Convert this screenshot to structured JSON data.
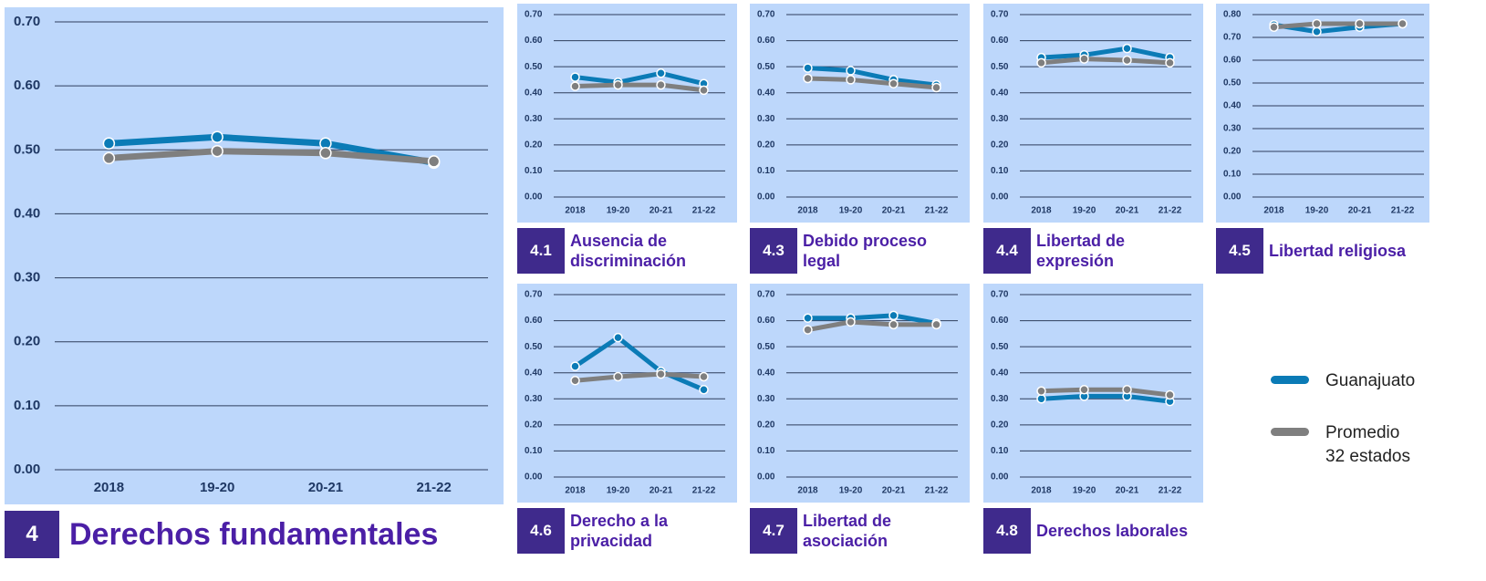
{
  "chart_data": [
    {
      "type": "line",
      "number": "4",
      "title": "Derechos fundamentales",
      "categories": [
        "2018",
        "19-20",
        "20-21",
        "21-22"
      ],
      "series": [
        {
          "name": "Guanajuato",
          "color": "#0b7bb6",
          "values": [
            0.51,
            0.52,
            0.51,
            0.48
          ]
        },
        {
          "name": "Promedio 32 estados",
          "color": "#7f7f7f",
          "values": [
            0.487,
            0.498,
            0.495,
            0.482
          ]
        }
      ],
      "ylim": [
        0,
        0.7
      ],
      "yticks": [
        {
          "value": 0,
          "label": "0.00"
        },
        {
          "value": 0.1,
          "label": "0.10"
        },
        {
          "value": 0.2,
          "label": "0.20"
        },
        {
          "value": 0.3,
          "label": "0.30"
        },
        {
          "value": 0.4,
          "label": "0.40"
        },
        {
          "value": 0.5,
          "label": "0.50"
        },
        {
          "value": 0.6,
          "label": "0.60"
        },
        {
          "value": 0.7,
          "label": "0.70"
        }
      ],
      "grid": true
    },
    {
      "type": "line",
      "number": "4.1",
      "title": "Ausencia de discriminación",
      "categories": [
        "2018",
        "19-20",
        "20-21",
        "21-22"
      ],
      "series": [
        {
          "name": "Guanajuato",
          "color": "#0b7bb6",
          "values": [
            0.46,
            0.44,
            0.475,
            0.435
          ]
        },
        {
          "name": "Promedio 32 estados",
          "color": "#7f7f7f",
          "values": [
            0.425,
            0.43,
            0.43,
            0.41
          ]
        }
      ],
      "ylim": [
        0,
        0.7
      ],
      "yticks": [
        {
          "value": 0,
          "label": "0.00"
        },
        {
          "value": 0.1,
          "label": "0.10"
        },
        {
          "value": 0.2,
          "label": "0.20"
        },
        {
          "value": 0.3,
          "label": "0.30"
        },
        {
          "value": 0.4,
          "label": "0.40"
        },
        {
          "value": 0.5,
          "label": "0.50"
        },
        {
          "value": 0.6,
          "label": "0.60"
        },
        {
          "value": 0.7,
          "label": "0.70"
        }
      ],
      "grid": true
    },
    {
      "type": "line",
      "number": "4.3",
      "title": "Debido proceso legal",
      "categories": [
        "2018",
        "19-20",
        "20-21",
        "21-22"
      ],
      "series": [
        {
          "name": "Guanajuato",
          "color": "#0b7bb6",
          "values": [
            0.495,
            0.485,
            0.45,
            0.43
          ]
        },
        {
          "name": "Promedio 32 estados",
          "color": "#7f7f7f",
          "values": [
            0.455,
            0.45,
            0.435,
            0.42
          ]
        }
      ],
      "ylim": [
        0,
        0.7
      ],
      "yticks": [
        {
          "value": 0,
          "label": "0.00"
        },
        {
          "value": 0.1,
          "label": "0.10"
        },
        {
          "value": 0.2,
          "label": "0.20"
        },
        {
          "value": 0.3,
          "label": "0.30"
        },
        {
          "value": 0.4,
          "label": "0.40"
        },
        {
          "value": 0.5,
          "label": "0.50"
        },
        {
          "value": 0.6,
          "label": "0.60"
        },
        {
          "value": 0.7,
          "label": "0.70"
        }
      ],
      "grid": true
    },
    {
      "type": "line",
      "number": "4.4",
      "title": "Libertad de expresión",
      "categories": [
        "2018",
        "19-20",
        "20-21",
        "21-22"
      ],
      "series": [
        {
          "name": "Guanajuato",
          "color": "#0b7bb6",
          "values": [
            0.535,
            0.545,
            0.57,
            0.535
          ]
        },
        {
          "name": "Promedio 32 estados",
          "color": "#7f7f7f",
          "values": [
            0.515,
            0.53,
            0.525,
            0.515
          ]
        }
      ],
      "ylim": [
        0,
        0.7
      ],
      "yticks": [
        {
          "value": 0,
          "label": "0.00"
        },
        {
          "value": 0.1,
          "label": "0.10"
        },
        {
          "value": 0.2,
          "label": "0.20"
        },
        {
          "value": 0.3,
          "label": "0.30"
        },
        {
          "value": 0.4,
          "label": "0.40"
        },
        {
          "value": 0.5,
          "label": "0.50"
        },
        {
          "value": 0.6,
          "label": "0.60"
        },
        {
          "value": 0.7,
          "label": "0.70"
        }
      ],
      "grid": true
    },
    {
      "type": "line",
      "number": "4.5",
      "title": "Libertad religiosa",
      "categories": [
        "2018",
        "19-20",
        "20-21",
        "21-22"
      ],
      "series": [
        {
          "name": "Guanajuato",
          "color": "#0b7bb6",
          "values": [
            0.755,
            0.725,
            0.745,
            0.76
          ]
        },
        {
          "name": "Promedio 32 estados",
          "color": "#7f7f7f",
          "values": [
            0.745,
            0.76,
            0.76,
            0.76
          ]
        }
      ],
      "ylim": [
        0,
        0.8
      ],
      "yticks": [
        {
          "value": 0,
          "label": "0.00"
        },
        {
          "value": 0.1,
          "label": "0.10"
        },
        {
          "value": 0.2,
          "label": "0.20"
        },
        {
          "value": 0.3,
          "label": "0.30"
        },
        {
          "value": 0.4,
          "label": "0.40"
        },
        {
          "value": 0.5,
          "label": "0.50"
        },
        {
          "value": 0.6,
          "label": "0.60"
        },
        {
          "value": 0.7,
          "label": "0.70"
        },
        {
          "value": 0.8,
          "label": "0.80"
        }
      ],
      "grid": true
    },
    {
      "type": "line",
      "number": "4.6",
      "title": "Derecho a la privacidad",
      "categories": [
        "2018",
        "19-20",
        "20-21",
        "21-22"
      ],
      "series": [
        {
          "name": "Guanajuato",
          "color": "#0b7bb6",
          "values": [
            0.425,
            0.535,
            0.405,
            0.335
          ]
        },
        {
          "name": "Promedio 32 estados",
          "color": "#7f7f7f",
          "values": [
            0.37,
            0.385,
            0.395,
            0.385
          ]
        }
      ],
      "ylim": [
        0,
        0.7
      ],
      "yticks": [
        {
          "value": 0,
          "label": "0.00"
        },
        {
          "value": 0.1,
          "label": "0.10"
        },
        {
          "value": 0.2,
          "label": "0.20"
        },
        {
          "value": 0.3,
          "label": "0.30"
        },
        {
          "value": 0.4,
          "label": "0.40"
        },
        {
          "value": 0.5,
          "label": "0.50"
        },
        {
          "value": 0.6,
          "label": "0.60"
        },
        {
          "value": 0.7,
          "label": "0.70"
        }
      ],
      "grid": true
    },
    {
      "type": "line",
      "number": "4.7",
      "title": "Libertad de asociación",
      "categories": [
        "2018",
        "19-20",
        "20-21",
        "21-22"
      ],
      "series": [
        {
          "name": "Guanajuato",
          "color": "#0b7bb6",
          "values": [
            0.61,
            0.61,
            0.62,
            0.59
          ]
        },
        {
          "name": "Promedio 32 estados",
          "color": "#7f7f7f",
          "values": [
            0.565,
            0.595,
            0.585,
            0.585
          ]
        }
      ],
      "ylim": [
        0,
        0.7
      ],
      "yticks": [
        {
          "value": 0,
          "label": "0.00"
        },
        {
          "value": 0.1,
          "label": "0.10"
        },
        {
          "value": 0.2,
          "label": "0.20"
        },
        {
          "value": 0.3,
          "label": "0.30"
        },
        {
          "value": 0.4,
          "label": "0.40"
        },
        {
          "value": 0.5,
          "label": "0.50"
        },
        {
          "value": 0.6,
          "label": "0.60"
        },
        {
          "value": 0.7,
          "label": "0.70"
        }
      ],
      "grid": true
    },
    {
      "type": "line",
      "number": "4.8",
      "title": "Derechos laborales",
      "categories": [
        "2018",
        "19-20",
        "20-21",
        "21-22"
      ],
      "series": [
        {
          "name": "Guanajuato",
          "color": "#0b7bb6",
          "values": [
            0.3,
            0.31,
            0.31,
            0.29
          ]
        },
        {
          "name": "Promedio 32 estados",
          "color": "#7f7f7f",
          "values": [
            0.33,
            0.335,
            0.335,
            0.315
          ]
        }
      ],
      "ylim": [
        0,
        0.7
      ],
      "yticks": [
        {
          "value": 0,
          "label": "0.00"
        },
        {
          "value": 0.1,
          "label": "0.10"
        },
        {
          "value": 0.2,
          "label": "0.20"
        },
        {
          "value": 0.3,
          "label": "0.30"
        },
        {
          "value": 0.4,
          "label": "0.40"
        },
        {
          "value": 0.5,
          "label": "0.50"
        },
        {
          "value": 0.6,
          "label": "0.60"
        },
        {
          "value": 0.7,
          "label": "0.70"
        }
      ],
      "grid": true
    }
  ]
}
